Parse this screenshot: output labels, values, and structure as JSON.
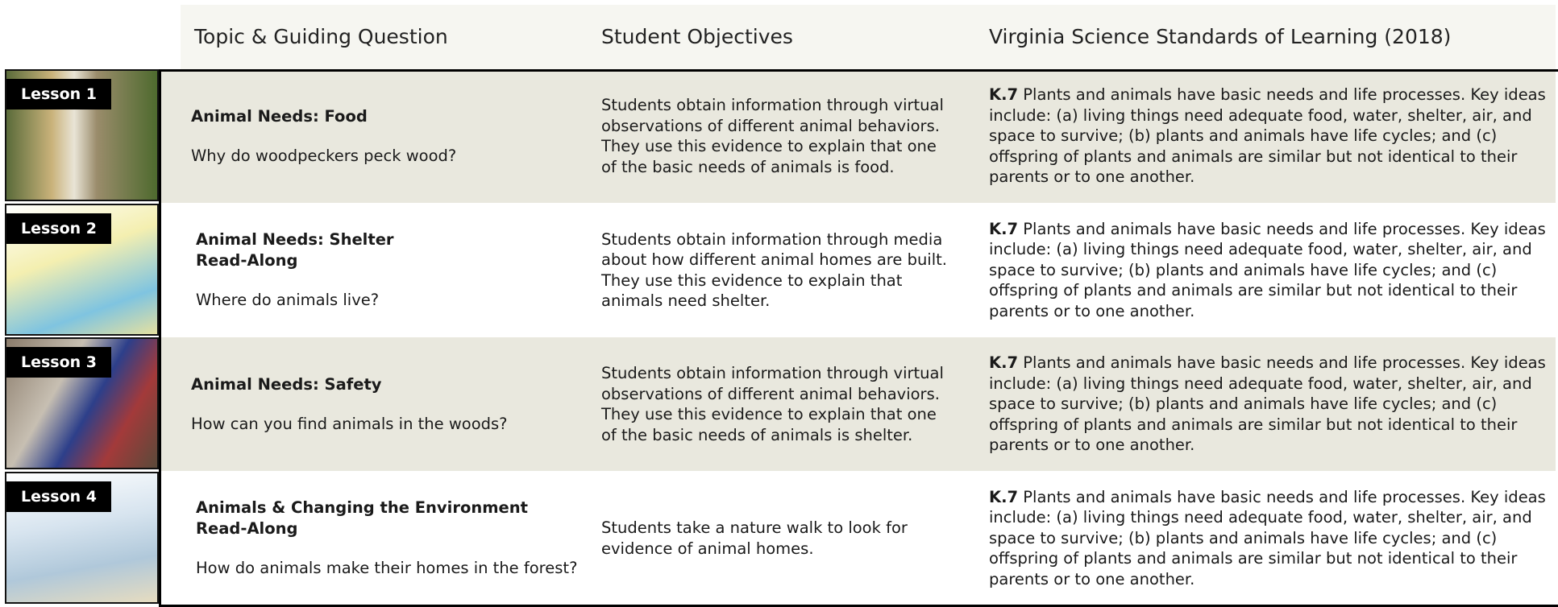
{
  "header": {
    "columns": [
      "Topic & Guiding Question",
      "Student Objectives",
      "Virginia Science Standards of Learning (2018)"
    ]
  },
  "rows": [
    {
      "lesson": "Lesson 1",
      "title_lines": [
        "Animal Needs: Food"
      ],
      "question": "Why do woodpeckers peck wood?",
      "objectives": "Students obtain information through virtual observations of different animal behaviors. They use this evidence to explain that one of the basic needs of animals is food.",
      "standard_code": "K.7",
      "standard_text": "Plants and animals have basic needs and life processes. Key ideas include: (a) living things need adequate food, water, shelter, air, and space to survive; (b) plants and animals have life cycles; and (c) offspring of plants and animals are similar but not identical to their parents or to one another."
    },
    {
      "lesson": "Lesson 2",
      "title_lines": [
        "Animal Needs: Shelter",
        "Read-Along"
      ],
      "question": "Where do animals live?",
      "objectives": "Students obtain information through media about how different animal homes are built. They use this evidence to explain that animals need shelter.",
      "standard_code": "K.7",
      "standard_text": "Plants and animals have basic needs and life processes. Key ideas include: (a) living things need adequate food, water, shelter, air, and space to survive; (b) plants and animals have life cycles; and (c) offspring of plants and animals are similar but not identical to their parents or to one another."
    },
    {
      "lesson": "Lesson 3",
      "title_lines": [
        "Animal Needs: Safety"
      ],
      "question": "How can you find animals in the woods?",
      "objectives": "Students obtain information through virtual observations of different animal behaviors. They use this evidence to explain that one of the basic needs of animals is shelter.",
      "standard_code": "K.7",
      "standard_text": "Plants and animals have basic needs and life processes. Key ideas include: (a) living things need adequate food, water, shelter, air, and space to survive; (b) plants and animals have life cycles; and (c) offspring of plants and animals are similar but not identical to their parents or to one another."
    },
    {
      "lesson": "Lesson 4",
      "title_lines": [
        "Animals & Changing the Environment",
        "Read-Along"
      ],
      "question": "How do animals make their homes in the forest?",
      "objectives": "Students take a nature walk to look for evidence of animal homes.",
      "standard_code": "K.7",
      "standard_text": "Plants and animals have basic needs and life processes. Key ideas include: (a) living things need adequate food, water, shelter, air, and space to survive; (b) plants and animals have life cycles; and (c) offspring of plants and animals are similar but not identical to their parents or to one another."
    }
  ]
}
